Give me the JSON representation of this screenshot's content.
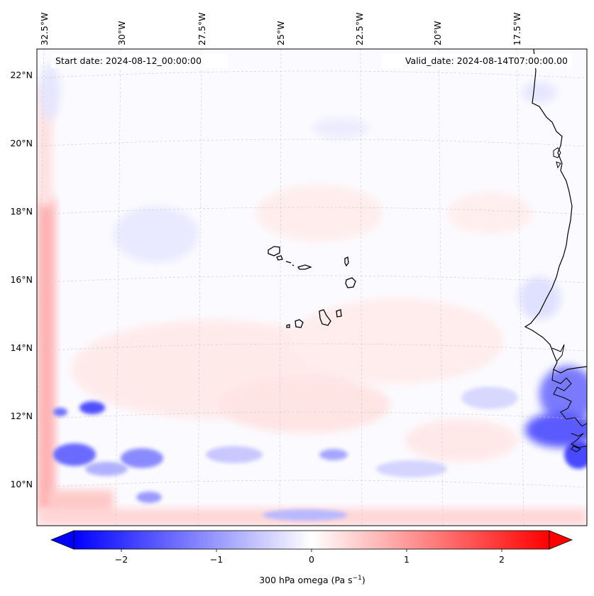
{
  "header": {
    "start_date": "Start date: 2024-08-12_00:00:00",
    "valid_date": "Valid_date: 2024-08-14T07:00:00.00"
  },
  "map": {
    "variable": "300 hPa omega",
    "lon_labels": [
      "32.5°W",
      "30°W",
      "27.5°W",
      "25°W",
      "22.5°W",
      "20°W",
      "17.5°W"
    ],
    "lat_labels": [
      "22°N",
      "20°N",
      "18°N",
      "16°N",
      "14°N",
      "12°N",
      "10°N"
    ],
    "gridlines": true,
    "features": [
      "west-africa-coastline",
      "cape-verde-islands"
    ]
  },
  "colorbar": {
    "label_prefix": "300 hPa omega (Pa s",
    "label_exponent": "−1",
    "label_suffix": ")",
    "ticks": [
      "−2",
      "−1",
      "0",
      "1",
      "2"
    ],
    "tick_values": [
      -2,
      -1,
      0,
      1,
      2
    ],
    "range": [
      -2.5,
      2.5
    ],
    "colormap": "bwr",
    "extend": "both",
    "color_min": "#0000ff",
    "color_mid": "#ffffff",
    "color_max": "#ff0000"
  }
}
